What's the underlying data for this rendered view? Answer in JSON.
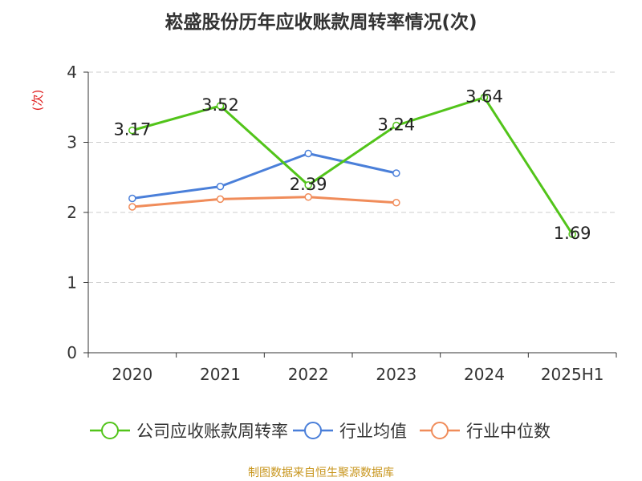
{
  "title": "崧盛股份历年应收账款周转率情况(次)",
  "source": "制图数据来自恒生聚源数据库",
  "chart_data": {
    "type": "line",
    "title": "崧盛股份历年应收账款周转率情况(次)",
    "ylabel": "(次)",
    "xlabel": "",
    "categories": [
      "2020",
      "2021",
      "2022",
      "2023",
      "2024",
      "2025H1"
    ],
    "y_ticks": [
      "0",
      "1",
      "2",
      "3",
      "4"
    ],
    "ylim": [
      0,
      4
    ],
    "grid": "horizontal dashed",
    "legend_position": "bottom",
    "series": [
      {
        "name": "公司应收账款周转率",
        "color": "#52c41a",
        "values": [
          3.17,
          3.52,
          2.39,
          3.24,
          3.64,
          1.69
        ],
        "labels": [
          "3.17",
          "3.52",
          "2.39",
          "3.24",
          "3.64",
          "1.69"
        ]
      },
      {
        "name": "行业均值",
        "color": "#4a7fd9",
        "values": [
          2.2,
          2.37,
          2.84,
          2.56,
          null,
          null
        ]
      },
      {
        "name": "行业中位数",
        "color": "#f08c5a",
        "values": [
          2.08,
          2.19,
          2.22,
          2.14,
          null,
          null
        ]
      }
    ]
  }
}
